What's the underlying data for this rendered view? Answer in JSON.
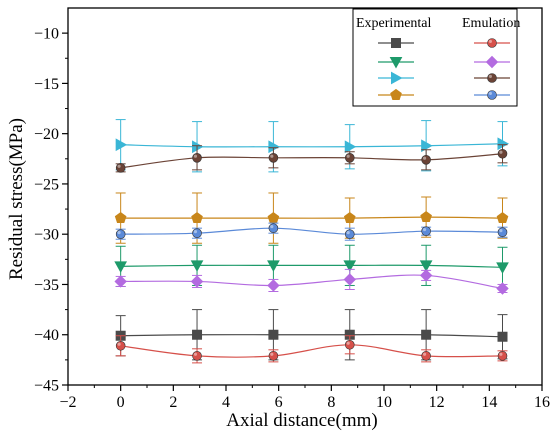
{
  "chart_data": {
    "type": "line",
    "title": "",
    "xlabel": "Axial distance(mm)",
    "ylabel": "Residual stress(MPa)",
    "xlim": [
      -2,
      16
    ],
    "ylim": [
      -45,
      -7.5
    ],
    "xticks": [
      -2,
      0,
      2,
      4,
      6,
      8,
      10,
      12,
      14,
      16
    ],
    "yticks": [
      -45,
      -40,
      -35,
      -30,
      -25,
      -20,
      -15,
      -10
    ],
    "grid": false,
    "legend_position": "top-right",
    "legend_headers": [
      "Experimental",
      "Emulation"
    ],
    "x": [
      0,
      2.9,
      5.8,
      8.7,
      11.6,
      14.5
    ],
    "series": [
      {
        "group": "experimental",
        "marker": "square",
        "color": "#4a4a4a",
        "y": [
          -40.1,
          -40.0,
          -40.0,
          -40.0,
          -40.0,
          -40.2
        ],
        "err": [
          2.0,
          2.5,
          2.5,
          2.5,
          2.5,
          2.2
        ]
      },
      {
        "group": "experimental",
        "marker": "triangle-down",
        "color": "#1e9a6a",
        "y": [
          -33.2,
          -33.1,
          -33.1,
          -33.1,
          -33.1,
          -33.3
        ],
        "err": [
          2.0,
          2.0,
          2.0,
          2.0,
          2.0,
          2.0
        ]
      },
      {
        "group": "experimental",
        "marker": "triangle-right",
        "color": "#3ab6d6",
        "y": [
          -21.1,
          -21.3,
          -21.3,
          -21.3,
          -21.2,
          -21.0
        ],
        "err": [
          2.5,
          2.5,
          2.5,
          2.2,
          2.5,
          2.2
        ]
      },
      {
        "group": "experimental",
        "marker": "pentagon",
        "color": "#c8861a",
        "y": [
          -28.4,
          -28.4,
          -28.4,
          -28.4,
          -28.3,
          -28.4
        ],
        "err": [
          2.5,
          2.5,
          2.5,
          2.0,
          2.0,
          2.0
        ]
      },
      {
        "group": "emulation",
        "marker": "circle",
        "color": "#d6504a",
        "y": [
          -41.1,
          -42.1,
          -42.1,
          -41.0,
          -42.1,
          -42.1
        ],
        "err": [
          1.0,
          0.7,
          0.6,
          0.9,
          0.6,
          0.5
        ]
      },
      {
        "group": "emulation",
        "marker": "diamond",
        "color": "#b36be0",
        "y": [
          -34.7,
          -34.7,
          -35.1,
          -34.5,
          -34.1,
          -35.4
        ],
        "err": [
          0.5,
          0.6,
          0.6,
          1.0,
          0.5,
          0.4
        ]
      },
      {
        "group": "emulation",
        "marker": "circle",
        "color": "#6b4336",
        "y": [
          -23.4,
          -22.4,
          -22.4,
          -22.4,
          -22.6,
          -22.0
        ],
        "err": [
          0.4,
          1.2,
          1.0,
          0.6,
          1.0,
          0.9
        ]
      },
      {
        "group": "emulation",
        "marker": "circle",
        "color": "#5b8ad8",
        "y": [
          -30.0,
          -29.9,
          -29.4,
          -30.0,
          -29.7,
          -29.8
        ],
        "err": [
          0.5,
          0.5,
          0.5,
          0.6,
          0.4,
          0.5
        ]
      }
    ]
  }
}
